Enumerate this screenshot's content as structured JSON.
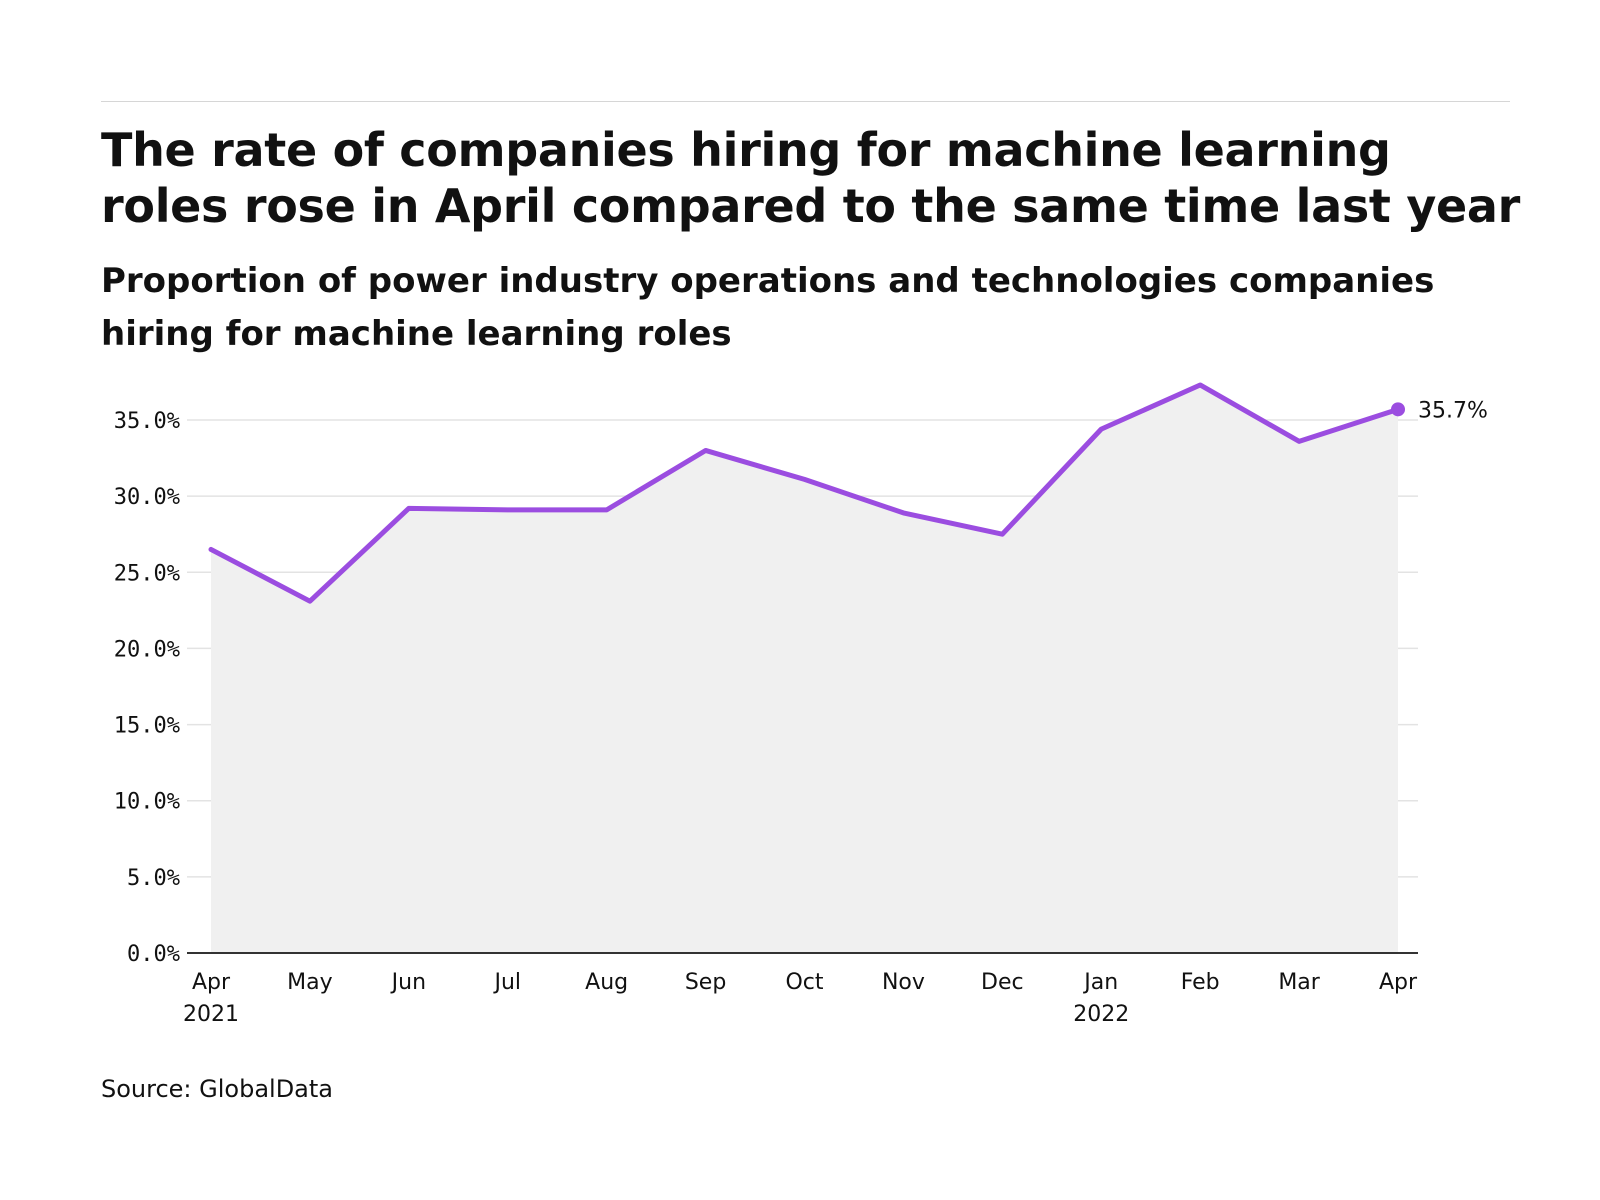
{
  "header": {
    "title": "The rate of companies hiring for machine learning roles rose in April compared to the same time last year",
    "subtitle": "Proportion of power industry operations and technologies companies hiring for machine learning roles"
  },
  "footer": {
    "source": "Source: GlobalData"
  },
  "colors": {
    "line": "#9b4de0",
    "area": "#f0f0f0",
    "grid": "#e3e3e3",
    "axis": "#333333"
  },
  "chart_data": {
    "type": "line",
    "title": "The rate of companies hiring for machine learning roles rose in April compared to the same time last year",
    "subtitle": "Proportion of power industry operations and technologies companies hiring for machine learning roles",
    "xlabel": "",
    "ylabel": "",
    "categories": [
      "Apr 2021",
      "May 2021",
      "Jun 2021",
      "Jul 2021",
      "Aug 2021",
      "Sep 2021",
      "Oct 2021",
      "Nov 2021",
      "Dec 2021",
      "Jan 2022",
      "Feb 2022",
      "Mar 2022",
      "Apr 2022"
    ],
    "x_tick_labels": [
      [
        "Apr",
        "2021"
      ],
      [
        "May"
      ],
      [
        "Jun"
      ],
      [
        "Jul"
      ],
      [
        "Aug"
      ],
      [
        "Sep"
      ],
      [
        "Oct"
      ],
      [
        "Nov"
      ],
      [
        "Dec"
      ],
      [
        "Jan",
        "2022"
      ],
      [
        "Feb"
      ],
      [
        "Mar"
      ],
      [
        "Apr"
      ]
    ],
    "series": [
      {
        "values": [
          26.5,
          23.1,
          29.2,
          29.1,
          29.1,
          33.0,
          31.1,
          28.9,
          27.5,
          34.4,
          37.3,
          33.6,
          35.7
        ]
      }
    ],
    "ylim": [
      0,
      35
    ],
    "y_ticks": [
      0,
      5,
      10,
      15,
      20,
      25,
      30,
      35
    ],
    "y_tick_labels": [
      "0.0%",
      "5.0%",
      "10.0%",
      "15.0%",
      "20.0%",
      "25.0%",
      "30.0%",
      "35.0%"
    ],
    "end_label": "35.7%",
    "grid": true,
    "area_fill": true
  }
}
